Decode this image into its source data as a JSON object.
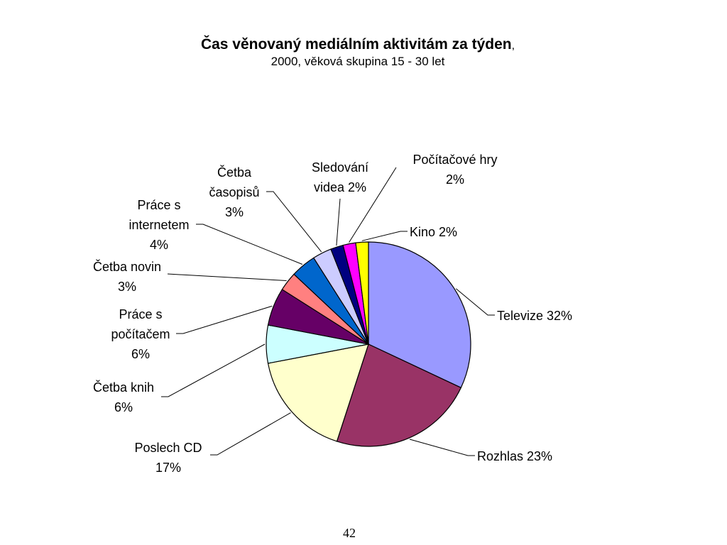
{
  "slide": {
    "title": "Čas věnovaný mediálním aktivitám za týden",
    "title_suffix": ",",
    "subtitle": "2000,  věková skupina 15 - 30 let",
    "page_number": "42"
  },
  "chart_data": {
    "type": "pie",
    "title": "Čas věnovaný mediálním aktivitám za týden,",
    "subtitle": "2000,  věková skupina 15 - 30 let",
    "legend": "none (data labels with leader lines)",
    "slices": [
      {
        "name": "Televize",
        "value": 32,
        "label_lines": [
          "Televize 32%"
        ],
        "color": "#9999ff"
      },
      {
        "name": "Rozhlas",
        "value": 23,
        "label_lines": [
          "Rozhlas  23%"
        ],
        "color": "#993366"
      },
      {
        "name": "Poslech CD",
        "value": 17,
        "label_lines": [
          "Poslech CD",
          "17%"
        ],
        "color": "#ffffcc"
      },
      {
        "name": "Četba knih",
        "value": 6,
        "label_lines": [
          "Četba knih",
          "6%"
        ],
        "color": "#ccffff"
      },
      {
        "name": "Práce s počítačem",
        "value": 6,
        "label_lines": [
          "Práce s",
          "počítačem",
          "6%"
        ],
        "color": "#660066"
      },
      {
        "name": "Četba novin",
        "value": 3,
        "label_lines": [
          "Četba novin",
          "3%"
        ],
        "color": "#ff8080"
      },
      {
        "name": "Práce s internetem",
        "value": 4,
        "label_lines": [
          "Práce s",
          "internetem",
          "4%"
        ],
        "color": "#0066cc"
      },
      {
        "name": "Četba časopisů",
        "value": 3,
        "label_lines": [
          "Četba",
          "časopisů",
          "3%"
        ],
        "color": "#ccccff"
      },
      {
        "name": "Sledování videa",
        "value": 2,
        "label_lines": [
          "Sledování",
          "videa 2%"
        ],
        "color": "#000080"
      },
      {
        "name": "Počítačové hry",
        "value": 2,
        "label_lines": [
          "Počítačové hry",
          "2%"
        ],
        "color": "#ff00ff"
      },
      {
        "name": "Kino",
        "value": 2,
        "label_lines": [
          "Kino 2%"
        ],
        "color": "#ffff00"
      }
    ]
  }
}
